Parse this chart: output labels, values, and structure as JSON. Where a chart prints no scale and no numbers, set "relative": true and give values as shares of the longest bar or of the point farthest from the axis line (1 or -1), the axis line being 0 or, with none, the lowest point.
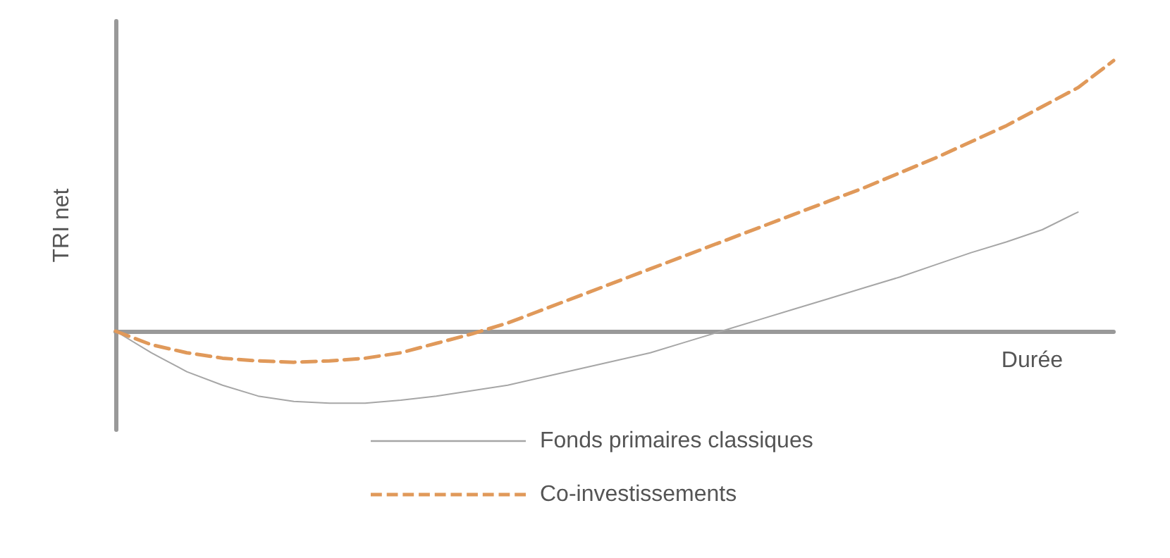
{
  "chart_data": {
    "type": "line",
    "relative": true,
    "xlabel": "Durée",
    "ylabel": "TRI net",
    "legend": "bottom",
    "marker": "none",
    "grid": false,
    "categories": [
      null,
      null,
      null,
      null,
      null,
      null,
      null,
      null,
      null,
      null,
      null,
      null,
      null,
      null,
      null,
      null,
      null,
      null,
      null,
      null,
      null,
      null,
      null,
      null,
      null,
      null,
      null,
      null,
      null
    ],
    "series": [
      {
        "name": "Fonds primaires classiques",
        "color": "#a6a6a6",
        "line_style": "solid",
        "values": [
          0,
          -0.08,
          -0.15,
          -0.2,
          -0.24,
          -0.26,
          -0.266,
          -0.266,
          -0.255,
          -0.24,
          -0.22,
          -0.2,
          -0.17,
          -0.14,
          -0.11,
          -0.08,
          -0.04,
          0,
          0.04,
          0.08,
          0.12,
          0.16,
          0.2,
          0.245,
          0.29,
          0.33,
          0.375,
          0.44,
          null
        ]
      },
      {
        "name": "Co-investissements",
        "color": "#e0995a",
        "line_style": "dashed",
        "values": [
          0,
          -0.05,
          -0.08,
          -0.1,
          -0.11,
          -0.115,
          -0.11,
          -0.1,
          -0.08,
          -0.045,
          -0.01,
          0.03,
          0.08,
          0.13,
          0.18,
          0.23,
          0.28,
          0.33,
          0.38,
          0.43,
          0.48,
          0.53,
          0.585,
          0.64,
          0.7,
          0.76,
          0.83,
          0.9,
          1
        ]
      }
    ]
  }
}
